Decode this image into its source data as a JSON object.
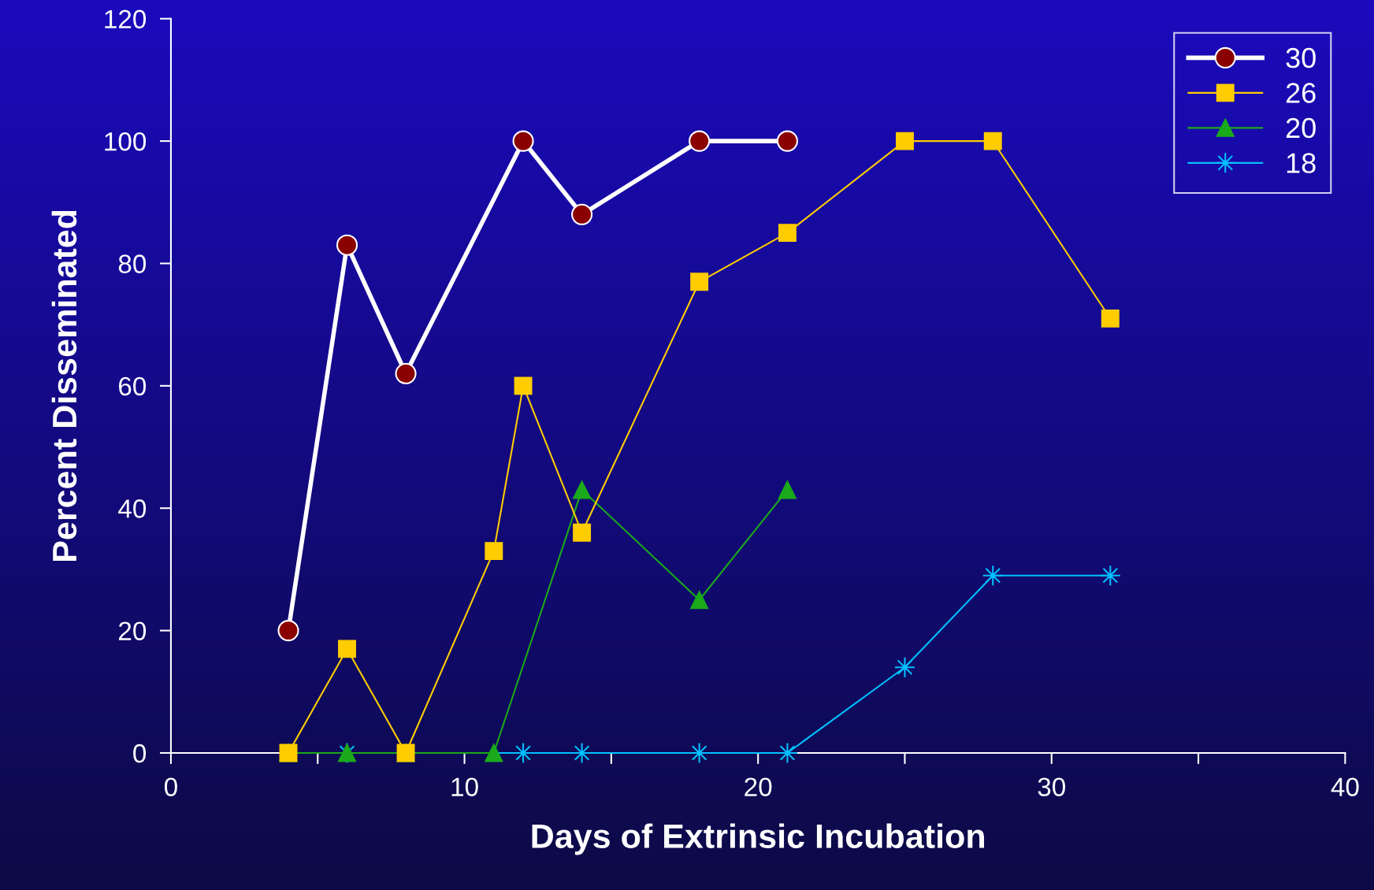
{
  "chart_data": {
    "type": "line",
    "xlabel": "Days of Extrinsic Incubation",
    "ylabel": "Percent Disseminated",
    "xlim": [
      0,
      40
    ],
    "xticks": [
      0,
      {
        "value": 5,
        "label": null
      },
      10,
      {
        "value": 15,
        "label": null
      },
      20,
      {
        "value": 25,
        "label": null
      },
      30,
      {
        "value": 35,
        "label": null
      },
      40
    ],
    "ylim": [
      0,
      120
    ],
    "yticks": [
      0,
      20,
      40,
      60,
      80,
      100,
      120
    ],
    "grid": false,
    "legend": "top right",
    "series": [
      {
        "name": "30",
        "color": "#8b0000",
        "marker": "circle",
        "x": [
          4,
          6,
          8,
          12,
          14,
          18,
          21
        ],
        "values": [
          20,
          83,
          62,
          100,
          88,
          100,
          100
        ]
      },
      {
        "name": "26",
        "color": "#ffcc00",
        "marker": "square",
        "x": [
          4,
          6,
          8,
          11,
          12,
          14,
          18,
          21,
          25,
          28,
          32
        ],
        "values": [
          0,
          17,
          0,
          33,
          60,
          36,
          77,
          85,
          100,
          100,
          71
        ]
      },
      {
        "name": "20",
        "color": "#1aaa1a",
        "marker": "triangle",
        "x": [
          4,
          6,
          8,
          11,
          14,
          18,
          21
        ],
        "values": [
          0,
          0,
          0,
          0,
          43,
          25,
          43
        ]
      },
      {
        "name": "18",
        "color": "#00bfff",
        "marker": "star",
        "x": [
          6,
          12,
          14,
          18,
          21,
          25,
          28,
          32
        ],
        "values": [
          0,
          0,
          0,
          0,
          0,
          14,
          29,
          29
        ]
      }
    ]
  }
}
